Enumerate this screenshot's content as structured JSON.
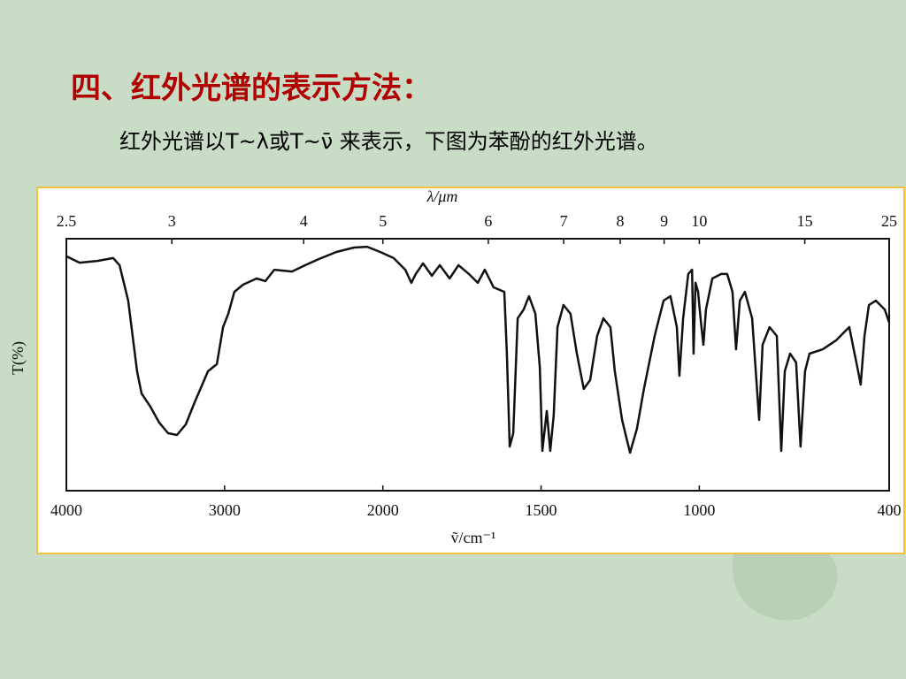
{
  "slide": {
    "title": "四、红外光谱的表示方法：",
    "subtitle": "红外光谱以T~λ或T~ν̄ 来表示，下图为苯酚的红外光谱。"
  },
  "chart_data": {
    "type": "line",
    "x_label": "ṽ/cm⁻¹",
    "x2_label": "λ/μm",
    "y_label": "T(%)",
    "xlim": [
      4000,
      400
    ],
    "xticks": [
      4000,
      3000,
      2000,
      1500,
      1000,
      400
    ],
    "x2ticks": [
      2.5,
      3,
      4,
      5,
      6,
      7,
      8,
      9,
      10,
      15,
      25
    ],
    "ylim": [
      0,
      100
    ],
    "x": [
      4000,
      3916,
      3804,
      3704,
      3664,
      3609,
      3581,
      3553,
      3525,
      3469,
      3413,
      3357,
      3301,
      3245,
      3189,
      3105,
      3049,
      3010,
      2977,
      2938,
      2882,
      2798,
      2742,
      2686,
      2574,
      2490,
      2406,
      2295,
      2183,
      2099,
      2015,
      1966,
      1929,
      1910,
      1896,
      1873,
      1845,
      1820,
      1789,
      1761,
      1728,
      1700,
      1678,
      1650,
      1616,
      1608,
      1599,
      1588,
      1574,
      1555,
      1538,
      1518,
      1504,
      1496,
      1482,
      1471,
      1460,
      1448,
      1429,
      1407,
      1387,
      1365,
      1345,
      1323,
      1303,
      1281,
      1267,
      1244,
      1219,
      1197,
      1175,
      1141,
      1113,
      1091,
      1071,
      1063,
      1051,
      1035,
      1023,
      1018,
      1012,
      1004,
      996,
      987,
      979,
      959,
      931,
      912,
      895,
      884,
      872,
      856,
      833,
      811,
      800,
      778,
      755,
      741,
      730,
      713,
      694,
      680,
      666,
      652,
      610,
      568,
      540,
      526,
      512,
      498,
      490,
      478,
      464,
      442,
      414,
      400
    ],
    "series": [
      {
        "color": "#111111",
        "values": [
          93.0,
          90.5,
          91.2,
          92.3,
          89.5,
          75.4,
          61.4,
          47.4,
          38.6,
          33.3,
          27.0,
          22.8,
          22.1,
          26.3,
          35.1,
          47.4,
          50.2,
          64.9,
          70.2,
          78.9,
          81.8,
          84.2,
          83.2,
          87.7,
          87.0,
          89.5,
          91.9,
          94.7,
          96.5,
          96.8,
          94.7,
          92.3,
          87.7,
          82.5,
          86.0,
          90.2,
          85.3,
          89.5,
          84.2,
          89.5,
          86.0,
          82.5,
          87.7,
          80.7,
          78.9,
          54.4,
          17.5,
          22.8,
          68.4,
          71.9,
          77.2,
          70.2,
          49.1,
          15.8,
          31.6,
          15.8,
          29.8,
          64.9,
          73.7,
          70.2,
          54.4,
          40.4,
          43.9,
          61.4,
          68.4,
          64.9,
          47.4,
          28.1,
          15.1,
          24.6,
          40.4,
          61.4,
          75.4,
          77.2,
          64.9,
          45.6,
          68.4,
          86.0,
          87.7,
          54.4,
          82.5,
          78.9,
          68.4,
          57.9,
          71.9,
          84.2,
          86.0,
          86.0,
          78.9,
          56.1,
          75.4,
          78.9,
          68.4,
          28.1,
          57.9,
          64.9,
          61.4,
          15.8,
          47.4,
          54.4,
          50.9,
          17.5,
          47.4,
          54.4,
          56.1,
          59.6,
          63.2,
          64.9,
          56.1,
          47.4,
          42.1,
          61.4,
          73.7,
          75.4,
          71.9,
          66.7
        ]
      }
    ]
  }
}
